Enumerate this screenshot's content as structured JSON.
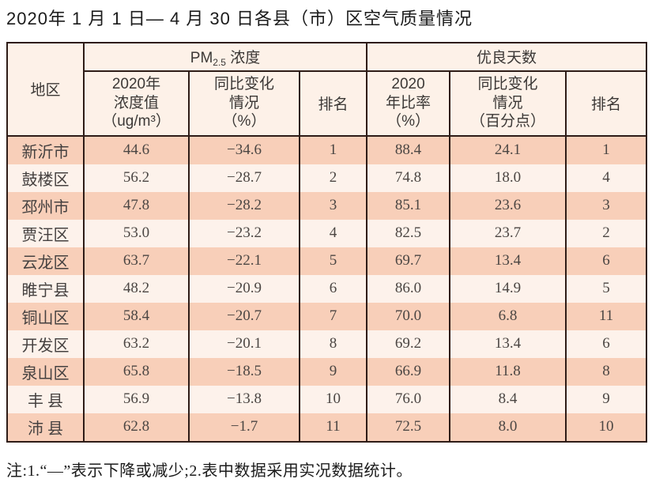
{
  "title": "2020年 1 月 1 日— 4 月 30 日各县（市）区空气质量情况",
  "header": {
    "region": "地区",
    "pm25_prefix": "PM",
    "pm25_sub": "2.5",
    "pm25_suffix": " 浓度",
    "good_days": "优良天数",
    "pm_value": "2020年\n浓度值\n（ug/m³）",
    "pm_change": "同比变化\n情况\n（%）",
    "pm_rank": "排名",
    "good_ratio": "2020\n年比率\n（%）",
    "good_change": "同比变化\n情况\n（百分点）",
    "good_rank": "排名"
  },
  "table": {
    "rows": [
      {
        "region": "新沂市",
        "pm_value": "44.6",
        "pm_change": "−34.6",
        "pm_rank": "1",
        "good_ratio": "88.4",
        "good_change": "24.1",
        "good_rank": "1"
      },
      {
        "region": "鼓楼区",
        "pm_value": "56.2",
        "pm_change": "−28.7",
        "pm_rank": "2",
        "good_ratio": "74.8",
        "good_change": "18.0",
        "good_rank": "4"
      },
      {
        "region": "邳州市",
        "pm_value": "47.8",
        "pm_change": "−28.2",
        "pm_rank": "3",
        "good_ratio": "85.1",
        "good_change": "23.6",
        "good_rank": "3"
      },
      {
        "region": "贾汪区",
        "pm_value": "53.0",
        "pm_change": "−23.2",
        "pm_rank": "4",
        "good_ratio": "82.5",
        "good_change": "23.7",
        "good_rank": "2"
      },
      {
        "region": "云龙区",
        "pm_value": "63.7",
        "pm_change": "−22.1",
        "pm_rank": "5",
        "good_ratio": "69.7",
        "good_change": "13.4",
        "good_rank": "6"
      },
      {
        "region": "睢宁县",
        "pm_value": "48.2",
        "pm_change": "−20.9",
        "pm_rank": "6",
        "good_ratio": "86.0",
        "good_change": "14.9",
        "good_rank": "5"
      },
      {
        "region": "铜山区",
        "pm_value": "58.4",
        "pm_change": "−20.7",
        "pm_rank": "7",
        "good_ratio": "70.0",
        "good_change": "6.8",
        "good_rank": "11"
      },
      {
        "region": "开发区",
        "pm_value": "63.2",
        "pm_change": "−20.1",
        "pm_rank": "8",
        "good_ratio": "69.2",
        "good_change": "13.4",
        "good_rank": "6"
      },
      {
        "region": "泉山区",
        "pm_value": "65.8",
        "pm_change": "−18.5",
        "pm_rank": "9",
        "good_ratio": "66.9",
        "good_change": "11.8",
        "good_rank": "8"
      },
      {
        "region": "丰 县",
        "pm_value": "56.9",
        "pm_change": "−13.8",
        "pm_rank": "10",
        "good_ratio": "76.0",
        "good_change": "8.4",
        "good_rank": "9"
      },
      {
        "region": "沛 县",
        "pm_value": "62.8",
        "pm_change": "−1.7",
        "pm_rank": "11",
        "good_ratio": "72.5",
        "good_change": "8.0",
        "good_rank": "10"
      }
    ]
  },
  "footnote": "注:1.“—”表示下降或减少;2.表中数据采用实况数据统计。",
  "colors": {
    "border": "#2e1c17",
    "header_bg": "#fdf1e8",
    "row_odd_bg": "#f8cfb9",
    "row_even_bg": "#fdf2eb"
  }
}
